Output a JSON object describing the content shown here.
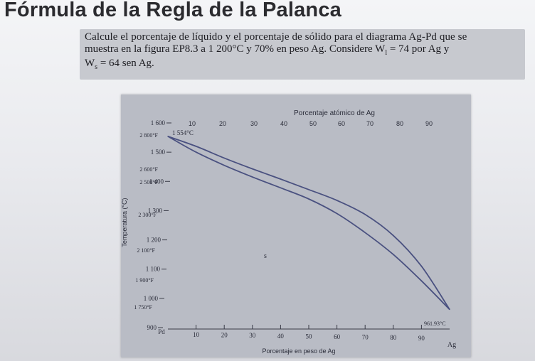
{
  "title": "Fórmula de la Regla de la Palanca",
  "problem": {
    "line1": "Calcule el porcentaje de líquido y el porcentaje de sólido para el diagrama Ag-Pd que se",
    "line2": "muestra en la figura EP8.3 a 1 200°C y 70% en peso Ag. Considere W",
    "line2_sub": "l",
    "line2_tail": " = 74 por Ag y",
    "line3": "W",
    "line3_sub": "s",
    "line3_tail": " = 64 sen Ag."
  },
  "chart_data": {
    "type": "line",
    "title": "",
    "top_axis_label": "Porcentaje atómico de Ag",
    "top_ticks": [
      "10",
      "20",
      "30",
      "40",
      "50",
      "60",
      "70",
      "80",
      "90"
    ],
    "xlabel": "Porcentaje en peso de Ag",
    "x_ticks": [
      "10",
      "20",
      "30",
      "40",
      "50",
      "60",
      "70",
      "80",
      "90"
    ],
    "x_left_label": "Pd",
    "x_right_label": "Ag",
    "xlim": [
      0,
      100
    ],
    "ylabel": "Temperatura (°C)",
    "ylim": [
      900,
      1600
    ],
    "y_ticks_c": [
      "1 600",
      "1 500",
      "1 400",
      "1 300",
      "1 200",
      "1 100",
      "1 000",
      "900"
    ],
    "y_ticks_f": [
      "2 800°F",
      "2 600°F",
      "2 500°F",
      "2 300°F",
      "2 100°F",
      "1 900°F",
      "1 750°F"
    ],
    "annotations": {
      "pd_melt": "1 554°C",
      "ag_melt": "961.93°C",
      "region_s": "s"
    },
    "series": [
      {
        "x": [
          0,
          10,
          20,
          30,
          40,
          50,
          60,
          70,
          80,
          90,
          100
        ],
        "y": [
          1554,
          1500,
          1455,
          1415,
          1378,
          1340,
          1290,
          1225,
          1150,
          1060,
          962
        ]
      },
      {
        "x": [
          0,
          10,
          20,
          30,
          40,
          50,
          60,
          70,
          80,
          90,
          100
        ],
        "y": [
          1554,
          1520,
          1480,
          1443,
          1408,
          1372,
          1335,
          1287,
          1215,
          1110,
          962
        ]
      }
    ]
  }
}
